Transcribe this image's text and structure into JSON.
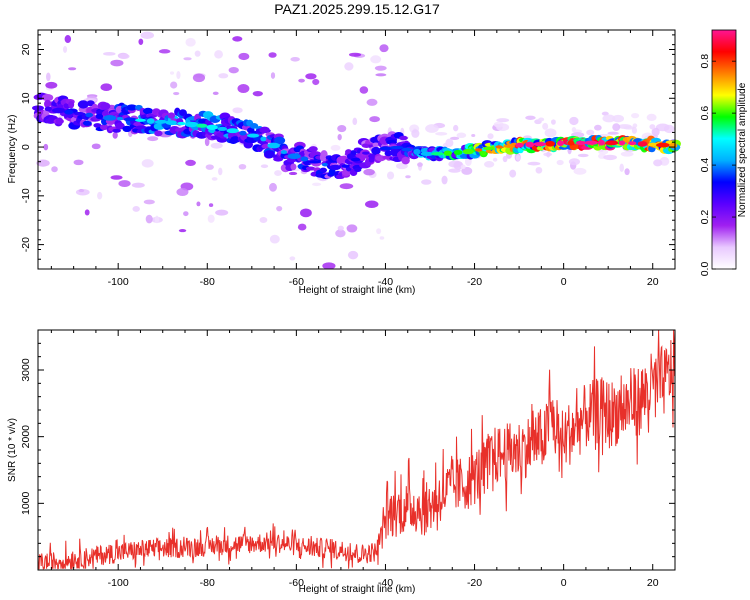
{
  "title": "PAZ1.2025.299.15.12.G17",
  "colors": {
    "snr_line": "#e8302a",
    "axis": "#000000",
    "background": "#ffffff"
  },
  "chart_data": [
    {
      "type": "heatmap",
      "name": "spectrogram",
      "xlabel": "Height of straight line (km)",
      "ylabel": "Frequency (Hz)",
      "xlim": [
        -118,
        25
      ],
      "ylim": [
        -25,
        24
      ],
      "x_ticks": [
        -100,
        -80,
        -60,
        -40,
        -20,
        0,
        20
      ],
      "y_ticks": [
        -20,
        -10,
        0,
        10,
        20
      ],
      "colorbar": {
        "label": "Normalized spectral amplitude",
        "range": [
          0,
          0.92
        ],
        "ticks": [
          0.0,
          0.2,
          0.4,
          0.6,
          0.8
        ],
        "tick_labels": [
          "0.0",
          "0.2",
          "0.4",
          "0.6",
          "0.8"
        ],
        "colormap": [
          "#ffffff",
          "#e9c9ff",
          "#a020f0",
          "#5a00ff",
          "#0000ff",
          "#00b0ff",
          "#00ffff",
          "#00ff00",
          "#ffff00",
          "#ff8000",
          "#ff0000",
          "#ff1493"
        ]
      },
      "ridge": [
        {
          "x": -117,
          "f": 8,
          "a": 0.25
        },
        {
          "x": -110,
          "f": 7,
          "a": 0.28
        },
        {
          "x": -102,
          "f": 6,
          "a": 0.3
        },
        {
          "x": -95,
          "f": 5.5,
          "a": 0.35
        },
        {
          "x": -88,
          "f": 5,
          "a": 0.38
        },
        {
          "x": -82,
          "f": 4.5,
          "a": 0.38
        },
        {
          "x": -75,
          "f": 3.5,
          "a": 0.35
        },
        {
          "x": -68,
          "f": 2,
          "a": 0.33
        },
        {
          "x": -62,
          "f": -1.5,
          "a": 0.3
        },
        {
          "x": -56,
          "f": -3,
          "a": 0.3
        },
        {
          "x": -50,
          "f": -4.5,
          "a": 0.28
        },
        {
          "x": -44,
          "f": -1,
          "a": 0.25
        },
        {
          "x": -38,
          "f": 0,
          "a": 0.28
        },
        {
          "x": -30,
          "f": -1.5,
          "a": 0.42
        },
        {
          "x": -22,
          "f": -1,
          "a": 0.5
        },
        {
          "x": -15,
          "f": 0,
          "a": 0.65
        },
        {
          "x": -8,
          "f": 0.5,
          "a": 0.7
        },
        {
          "x": 0,
          "f": 0.8,
          "a": 0.75
        },
        {
          "x": 8,
          "f": 0.9,
          "a": 0.8
        },
        {
          "x": 15,
          "f": 0.8,
          "a": 0.72
        },
        {
          "x": 24,
          "f": 0.3,
          "a": 0.65
        }
      ]
    },
    {
      "type": "line",
      "name": "snr",
      "xlabel": "Height of straight line (km)",
      "ylabel": "SNR (10 * v/v)",
      "xlim": [
        -118,
        25
      ],
      "ylim": [
        0,
        3600
      ],
      "x_ticks": [
        -100,
        -80,
        -60,
        -40,
        -20,
        0,
        20
      ],
      "y_ticks": [
        1000,
        2000,
        3000
      ],
      "series": [
        {
          "name": "SNR",
          "x": [
            -118,
            -115,
            -110,
            -105,
            -100,
            -95,
            -90,
            -85,
            -80,
            -75,
            -70,
            -65,
            -60,
            -55,
            -50,
            -45,
            -42,
            -40,
            -37,
            -34,
            -31,
            -28,
            -25,
            -22,
            -19,
            -16,
            -13,
            -10,
            -7,
            -4,
            -3,
            -1,
            2,
            5,
            8,
            11,
            14,
            17,
            20,
            23,
            25
          ],
          "values": [
            100,
            120,
            160,
            210,
            260,
            300,
            330,
            340,
            360,
            380,
            400,
            420,
            360,
            330,
            300,
            240,
            280,
            800,
            900,
            950,
            900,
            1100,
            1250,
            1300,
            1450,
            1700,
            1750,
            1800,
            1900,
            2000,
            2400,
            1900,
            2100,
            2300,
            2400,
            2350,
            2450,
            2550,
            2750,
            2850,
            3100
          ]
        }
      ]
    }
  ]
}
